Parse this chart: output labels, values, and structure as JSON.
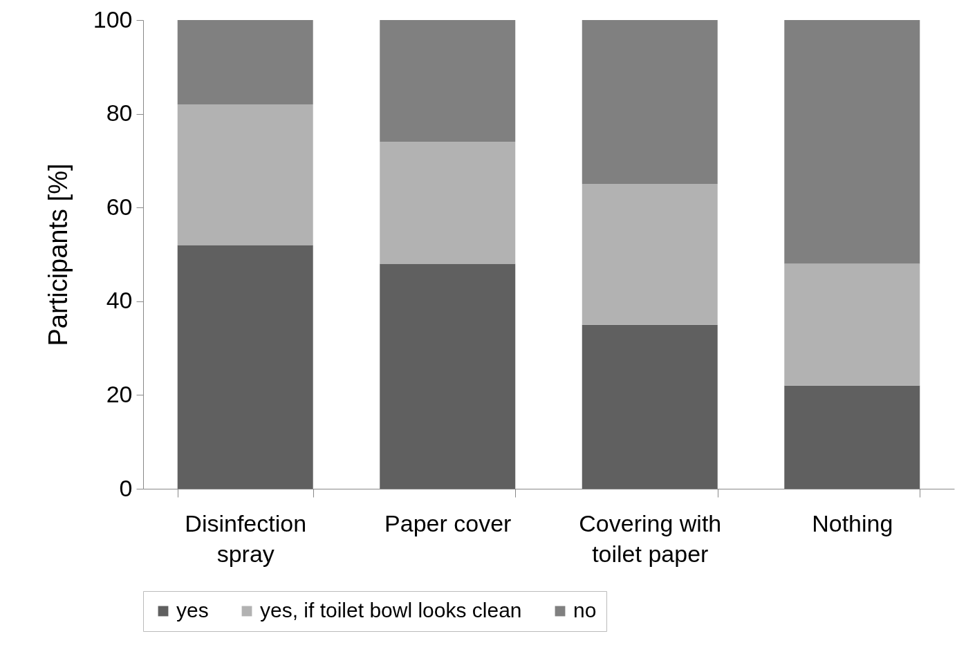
{
  "chart_data": {
    "type": "bar",
    "stacked": true,
    "ylabel": "Participants [%]",
    "categories": [
      "Disinfection spray",
      "Paper cover",
      "Covering with toilet paper",
      "Nothing"
    ],
    "series": [
      {
        "name": "yes",
        "color": "#606060",
        "values": [
          52,
          48,
          35,
          22
        ]
      },
      {
        "name": "yes, if toilet bowl looks clean",
        "color": "#b2b2b2",
        "values": [
          30,
          26,
          30,
          26
        ]
      },
      {
        "name": "no",
        "color": "#808080",
        "values": [
          18,
          26,
          35,
          52
        ]
      }
    ],
    "ylim": [
      0,
      100
    ],
    "yticks": [
      0,
      20,
      40,
      60,
      80,
      100
    ],
    "grid": false,
    "legend": "bottom"
  }
}
